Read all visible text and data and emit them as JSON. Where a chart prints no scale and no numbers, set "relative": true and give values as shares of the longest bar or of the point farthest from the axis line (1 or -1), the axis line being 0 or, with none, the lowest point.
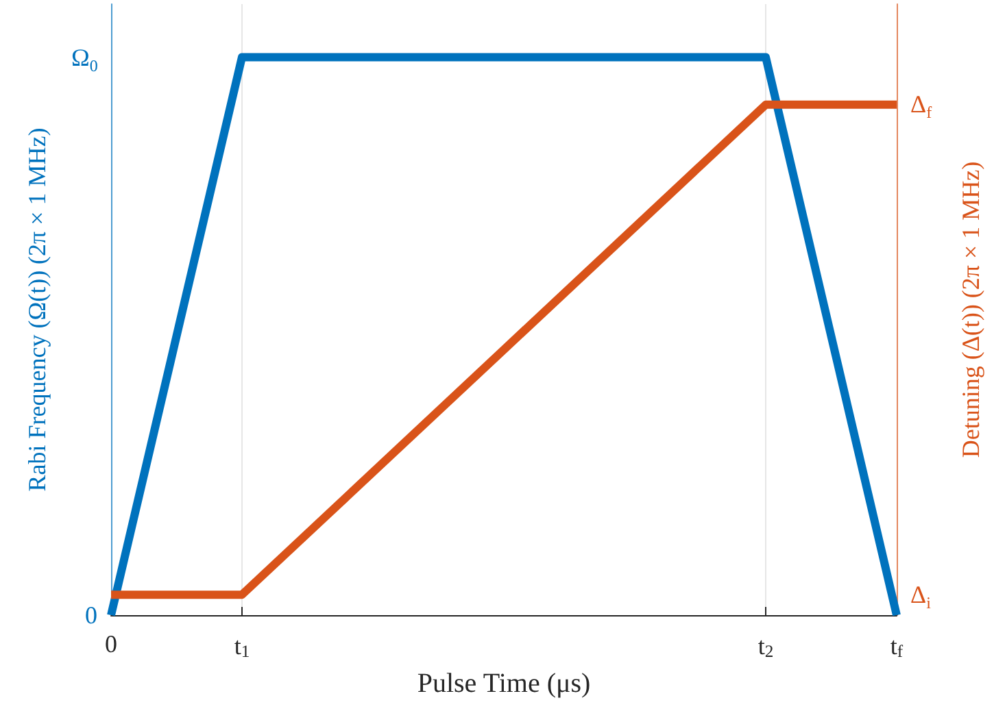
{
  "chart_data": {
    "type": "line",
    "xlabel": "Pulse Time (μs)",
    "ylabel": "Rabi Frequency (Ω(t)) (2π × 1 MHz)",
    "y2label": "Detuning (Δ(t)) (2π × 1 MHz)",
    "categories": [
      "0",
      "t$_{1}$",
      null,
      null,
      null,
      "t$_{2}$",
      "t$_{f}$"
    ],
    "series": [
      {
        "color": "#0072bd",
        "values": [
          0,
          1,
          null,
          null,
          null,
          1,
          0
        ]
      },
      {
        "color": "#d95319",
        "values": [
          0.04,
          0.04,
          null,
          null,
          null,
          1,
          1
        ],
        "axis": "y2"
      }
    ],
    "relative": true,
    "annotations": [
      "0",
      "Ω$_{0}$",
      "Δ$_{i}$",
      "Δ$_{f}$"
    ],
    "grid": "x",
    "marker": "none",
    "line_style": "solid"
  }
}
